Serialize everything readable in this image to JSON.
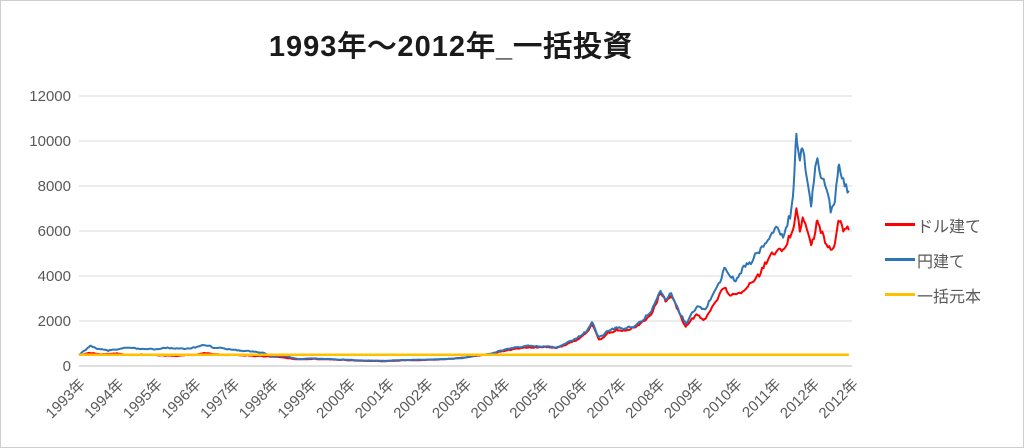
{
  "chart_data": {
    "type": "line",
    "title": "1993年〜2012年_一括投資",
    "xlabel": "",
    "ylabel": "",
    "ylim": [
      0,
      12000
    ],
    "xlim": [
      1993,
      2013
    ],
    "grid": true,
    "legend_position": "right",
    "y_tick_labels": [
      "0",
      "2000",
      "4000",
      "6000",
      "8000",
      "10000",
      "12000"
    ],
    "y_tick_values": [
      0,
      2000,
      4000,
      6000,
      8000,
      10000,
      12000
    ],
    "x_tick_labels": [
      "1993年",
      "1994年",
      "1995年",
      "1996年",
      "1997年",
      "1998年",
      "1999年",
      "2000年",
      "2001年",
      "2002年",
      "2003年",
      "2004年",
      "2005年",
      "2006年",
      "2007年",
      "2008年",
      "2009年",
      "2010年",
      "2011年",
      "2012年",
      "2012年"
    ],
    "series": [
      {
        "name": "ドル建て",
        "color": "#FF0000",
        "jitter": 0.045,
        "points": [
          [
            1993.0,
            500
          ],
          [
            1993.3,
            570
          ],
          [
            1993.6,
            520
          ],
          [
            1994.0,
            545
          ],
          [
            1994.4,
            475
          ],
          [
            1994.8,
            520
          ],
          [
            1995.2,
            455
          ],
          [
            1995.6,
            445
          ],
          [
            1996.0,
            520
          ],
          [
            1996.25,
            565
          ],
          [
            1996.7,
            505
          ],
          [
            1997.1,
            485
          ],
          [
            1997.5,
            455
          ],
          [
            1997.9,
            425
          ],
          [
            1998.2,
            405
          ],
          [
            1998.6,
            300
          ],
          [
            1999.0,
            315
          ],
          [
            1999.5,
            295
          ],
          [
            2000.0,
            255
          ],
          [
            2000.5,
            225
          ],
          [
            2000.9,
            205
          ],
          [
            2001.3,
            245
          ],
          [
            2001.8,
            265
          ],
          [
            2002.2,
            285
          ],
          [
            2002.6,
            315
          ],
          [
            2003.0,
            385
          ],
          [
            2003.4,
            485
          ],
          [
            2003.8,
            590
          ],
          [
            2004.1,
            730
          ],
          [
            2004.5,
            810
          ],
          [
            2004.9,
            860
          ],
          [
            2005.1,
            840
          ],
          [
            2005.35,
            810
          ],
          [
            2005.6,
            950
          ],
          [
            2005.9,
            1180
          ],
          [
            2006.1,
            1400
          ],
          [
            2006.28,
            1850
          ],
          [
            2006.45,
            1200
          ],
          [
            2006.7,
            1460
          ],
          [
            2006.9,
            1580
          ],
          [
            2007.15,
            1600
          ],
          [
            2007.4,
            1720
          ],
          [
            2007.6,
            1960
          ],
          [
            2007.8,
            2250
          ],
          [
            2007.95,
            2750
          ],
          [
            2008.05,
            3300
          ],
          [
            2008.18,
            2900
          ],
          [
            2008.32,
            3150
          ],
          [
            2008.5,
            2450
          ],
          [
            2008.7,
            1700
          ],
          [
            2008.85,
            2100
          ],
          [
            2009.0,
            2250
          ],
          [
            2009.2,
            2030
          ],
          [
            2009.38,
            2600
          ],
          [
            2009.55,
            3000
          ],
          [
            2009.7,
            3550
          ],
          [
            2009.85,
            3250
          ],
          [
            2010.0,
            3200
          ],
          [
            2010.2,
            3400
          ],
          [
            2010.45,
            3800
          ],
          [
            2010.7,
            4300
          ],
          [
            2010.9,
            4850
          ],
          [
            2011.1,
            5300
          ],
          [
            2011.25,
            5150
          ],
          [
            2011.4,
            5700
          ],
          [
            2011.5,
            6300
          ],
          [
            2011.56,
            7200
          ],
          [
            2011.65,
            6200
          ],
          [
            2011.72,
            6600
          ],
          [
            2011.85,
            5900
          ],
          [
            2011.95,
            5300
          ],
          [
            2012.1,
            6450
          ],
          [
            2012.2,
            6000
          ],
          [
            2012.3,
            5700
          ],
          [
            2012.45,
            5150
          ],
          [
            2012.55,
            5400
          ],
          [
            2012.65,
            6450
          ],
          [
            2012.78,
            6050
          ],
          [
            2012.92,
            6000
          ]
        ]
      },
      {
        "name": "円建て",
        "color": "#2E75B6",
        "jitter": 0.045,
        "points": [
          [
            1993.0,
            500
          ],
          [
            1993.08,
            600
          ],
          [
            1993.3,
            900
          ],
          [
            1993.5,
            760
          ],
          [
            1993.75,
            700
          ],
          [
            1994.0,
            760
          ],
          [
            1994.2,
            830
          ],
          [
            1994.5,
            760
          ],
          [
            1994.9,
            740
          ],
          [
            1995.2,
            790
          ],
          [
            1995.5,
            800
          ],
          [
            1995.9,
            770
          ],
          [
            1996.2,
            950
          ],
          [
            1996.5,
            830
          ],
          [
            1996.8,
            770
          ],
          [
            1997.2,
            690
          ],
          [
            1997.5,
            650
          ],
          [
            1997.8,
            570
          ],
          [
            1998.0,
            430
          ],
          [
            1998.3,
            460
          ],
          [
            1998.7,
            300
          ],
          [
            1999.0,
            340
          ],
          [
            1999.4,
            310
          ],
          [
            2000.0,
            270
          ],
          [
            2000.5,
            240
          ],
          [
            2000.9,
            230
          ],
          [
            2001.3,
            260
          ],
          [
            2001.7,
            270
          ],
          [
            2002.1,
            290
          ],
          [
            2002.5,
            310
          ],
          [
            2002.9,
            350
          ],
          [
            2003.2,
            440
          ],
          [
            2003.5,
            510
          ],
          [
            2003.8,
            620
          ],
          [
            2004.1,
            780
          ],
          [
            2004.5,
            870
          ],
          [
            2004.9,
            900
          ],
          [
            2005.1,
            870
          ],
          [
            2005.35,
            840
          ],
          [
            2005.6,
            1000
          ],
          [
            2005.9,
            1260
          ],
          [
            2006.1,
            1520
          ],
          [
            2006.28,
            1950
          ],
          [
            2006.45,
            1250
          ],
          [
            2006.7,
            1560
          ],
          [
            2006.9,
            1700
          ],
          [
            2007.15,
            1660
          ],
          [
            2007.4,
            1810
          ],
          [
            2007.6,
            2060
          ],
          [
            2007.8,
            2400
          ],
          [
            2007.95,
            2950
          ],
          [
            2008.05,
            3400
          ],
          [
            2008.18,
            3000
          ],
          [
            2008.32,
            3250
          ],
          [
            2008.5,
            2550
          ],
          [
            2008.7,
            1900
          ],
          [
            2008.85,
            2350
          ],
          [
            2009.0,
            2700
          ],
          [
            2009.2,
            2480
          ],
          [
            2009.38,
            3100
          ],
          [
            2009.55,
            3650
          ],
          [
            2009.7,
            4400
          ],
          [
            2009.85,
            3950
          ],
          [
            2010.0,
            3750
          ],
          [
            2010.2,
            4300
          ],
          [
            2010.45,
            4750
          ],
          [
            2010.7,
            5200
          ],
          [
            2010.9,
            5800
          ],
          [
            2011.1,
            6100
          ],
          [
            2011.25,
            5950
          ],
          [
            2011.4,
            6600
          ],
          [
            2011.5,
            8400
          ],
          [
            2011.56,
            10500
          ],
          [
            2011.65,
            9000
          ],
          [
            2011.72,
            9600
          ],
          [
            2011.85,
            8300
          ],
          [
            2011.95,
            7200
          ],
          [
            2012.1,
            9300
          ],
          [
            2012.2,
            8400
          ],
          [
            2012.3,
            8000
          ],
          [
            2012.45,
            7100
          ],
          [
            2012.55,
            7300
          ],
          [
            2012.65,
            8800
          ],
          [
            2012.78,
            8200
          ],
          [
            2012.92,
            7900
          ]
        ]
      },
      {
        "name": "一括元本",
        "color": "#FFC000",
        "jitter": 0,
        "points": [
          [
            1993.0,
            500
          ],
          [
            2012.92,
            500
          ]
        ]
      }
    ]
  },
  "style": {
    "gridline_color": "#D9D9D9",
    "axis_line_color": "#BFBFBF",
    "tick_text_color": "#595959",
    "background": "#FFFFFF"
  }
}
